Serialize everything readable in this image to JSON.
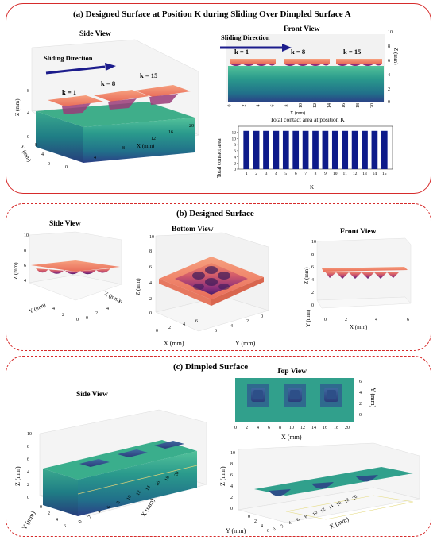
{
  "panel_a": {
    "title": "(a) Designed Surface at Position K during Sliding Over Dimpled Surface A",
    "side_view": {
      "title": "Side View",
      "arrow_label": "Sliding Direction",
      "k_labels": [
        "k = 1",
        "k = 8",
        "k = 15"
      ],
      "z_label": "Z (mm)",
      "z_ticks": [
        "8",
        "4",
        "0"
      ],
      "y_label": "Y (mm)",
      "y_ticks": [
        "8",
        "4",
        "0"
      ],
      "x_label": "X (mm)",
      "x_ticks": [
        "0",
        "4",
        "8",
        "12",
        "16",
        "20"
      ]
    },
    "front_view": {
      "title": "Front View",
      "arrow_label": "Sliding Direction",
      "k_labels": [
        "k = 1",
        "k = 8",
        "k = 15"
      ],
      "z_label": "Z (mm)",
      "z_ticks": [
        "10",
        "8",
        "6",
        "4",
        "2",
        "0"
      ],
      "x_label": "X (mm)",
      "x_ticks": [
        "0",
        "2",
        "4",
        "6",
        "8",
        "10",
        "12",
        "14",
        "16",
        "18",
        "20"
      ]
    },
    "contact_chart": {
      "title": "Total contact area at position K",
      "ylabel": "Total contact area",
      "xlabel": "K"
    }
  },
  "panel_b": {
    "title": "(b) Designed Surface",
    "side_view": {
      "title": "Side View",
      "z_label": "Z (mm)",
      "z_ticks": [
        "10",
        "8",
        "6",
        "4"
      ],
      "y_label": "Y (mm)",
      "x_label": "X (mm)",
      "y_ticks": [
        "4",
        "2",
        "0"
      ],
      "x_ticks": [
        "0",
        "2",
        "4",
        "6"
      ]
    },
    "bottom_view": {
      "title": "Bottom View",
      "z_label": "Z (mm)",
      "z_ticks": [
        "10",
        "8",
        "6",
        "4",
        "2",
        "0"
      ],
      "x_label": "X (mm)",
      "y_label": "Y (mm)",
      "x_ticks": [
        "0",
        "2",
        "4",
        "6"
      ],
      "y_ticks": [
        "6",
        "4",
        "2",
        "0"
      ]
    },
    "front_view": {
      "title": "Front View",
      "z_label": "Z (mm)",
      "z_ticks": [
        "10",
        "8",
        "6",
        "4",
        "2",
        "0"
      ],
      "y_label": "Y (mm)",
      "x_label": "X (mm)",
      "x_ticks": [
        "0",
        "2",
        "4",
        "6"
      ]
    }
  },
  "panel_c": {
    "title": "(c) Dimpled Surface",
    "side_view": {
      "title": "Side View",
      "z_label": "Z (mm)",
      "z_ticks": [
        "10",
        "8",
        "6",
        "4",
        "2",
        "0"
      ],
      "y_label": "Y (mm)",
      "y_ticks": [
        "0",
        "2",
        "4",
        "6"
      ],
      "x_label": "X (mm)",
      "x_ticks": [
        "0",
        "2",
        "4",
        "6",
        "8",
        "10",
        "12",
        "14",
        "16",
        "18",
        "20"
      ]
    },
    "top_view": {
      "title": "Top View",
      "y_label": "Y (mm)",
      "y_ticks": [
        "6",
        "4",
        "2",
        "0"
      ],
      "x_label": "X (mm)",
      "x_ticks": [
        "0",
        "2",
        "4",
        "6",
        "8",
        "10",
        "12",
        "14",
        "16",
        "18",
        "20"
      ]
    },
    "perspective": {
      "z_label": "Z (mm)",
      "z_ticks": [
        "10",
        "8",
        "6",
        "4",
        "2",
        "0"
      ],
      "y_label": "Y (mm)",
      "y_ticks": [
        "0",
        "2",
        "4",
        "6"
      ],
      "x_label": "X (mm)",
      "x_ticks": [
        "0",
        "2",
        "4",
        "6",
        "8",
        "10",
        "12",
        "14",
        "16",
        "18",
        "20"
      ]
    }
  },
  "colors": {
    "border": "#d62b2b",
    "arrow": "#1c1c8c",
    "bar": "#0d1a8a",
    "orange": "#f08a6a",
    "teal": "#2a9a8c",
    "dark_teal": "#1f6470",
    "purple": "#5a2a7a"
  },
  "chart_data": {
    "type": "bar",
    "title": "Total contact area at position K",
    "xlabel": "K",
    "ylabel": "Total contact area",
    "categories": [
      "1",
      "2",
      "3",
      "4",
      "5",
      "6",
      "7",
      "8",
      "9",
      "10",
      "11",
      "12",
      "13",
      "14",
      "15"
    ],
    "values": [
      12.5,
      12.5,
      12.5,
      12.5,
      12.5,
      12.5,
      12.5,
      12.5,
      12.5,
      12.5,
      12.5,
      12.5,
      12.5,
      12.5,
      12.5
    ],
    "ylim": [
      0,
      14
    ],
    "yticks": [
      0,
      2,
      4,
      6,
      8,
      10,
      12
    ],
    "grid": false
  }
}
